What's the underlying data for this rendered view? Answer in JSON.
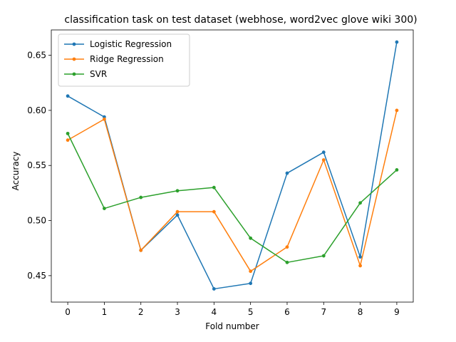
{
  "chart_data": {
    "type": "line",
    "title": "classification task on test dataset (webhose, word2vec glove wiki 300)",
    "xlabel": "Fold number",
    "ylabel": "Accuracy",
    "x": [
      0,
      1,
      2,
      3,
      4,
      5,
      6,
      7,
      8,
      9
    ],
    "xlim": [
      -0.45,
      9.45
    ],
    "ylim": [
      0.426,
      0.673
    ],
    "xticks": [
      "0",
      "1",
      "2",
      "3",
      "4",
      "5",
      "6",
      "7",
      "8",
      "9"
    ],
    "yticks": [
      "0.45",
      "0.50",
      "0.55",
      "0.60",
      "0.65"
    ],
    "grid": false,
    "legend_position": "upper-left",
    "series": [
      {
        "name": "Logistic Regression",
        "color": "#1f77b4",
        "values": [
          0.613,
          0.594,
          0.473,
          0.505,
          0.438,
          0.443,
          0.543,
          0.562,
          0.467,
          0.662
        ]
      },
      {
        "name": "Ridge Regression",
        "color": "#ff7f0e",
        "values": [
          0.573,
          0.592,
          0.473,
          0.508,
          0.508,
          0.454,
          0.476,
          0.555,
          0.459,
          0.6
        ]
      },
      {
        "name": "SVR",
        "color": "#2ca02c",
        "values": [
          0.579,
          0.511,
          0.521,
          0.527,
          0.53,
          0.484,
          0.462,
          0.468,
          0.516,
          0.546
        ]
      }
    ]
  }
}
